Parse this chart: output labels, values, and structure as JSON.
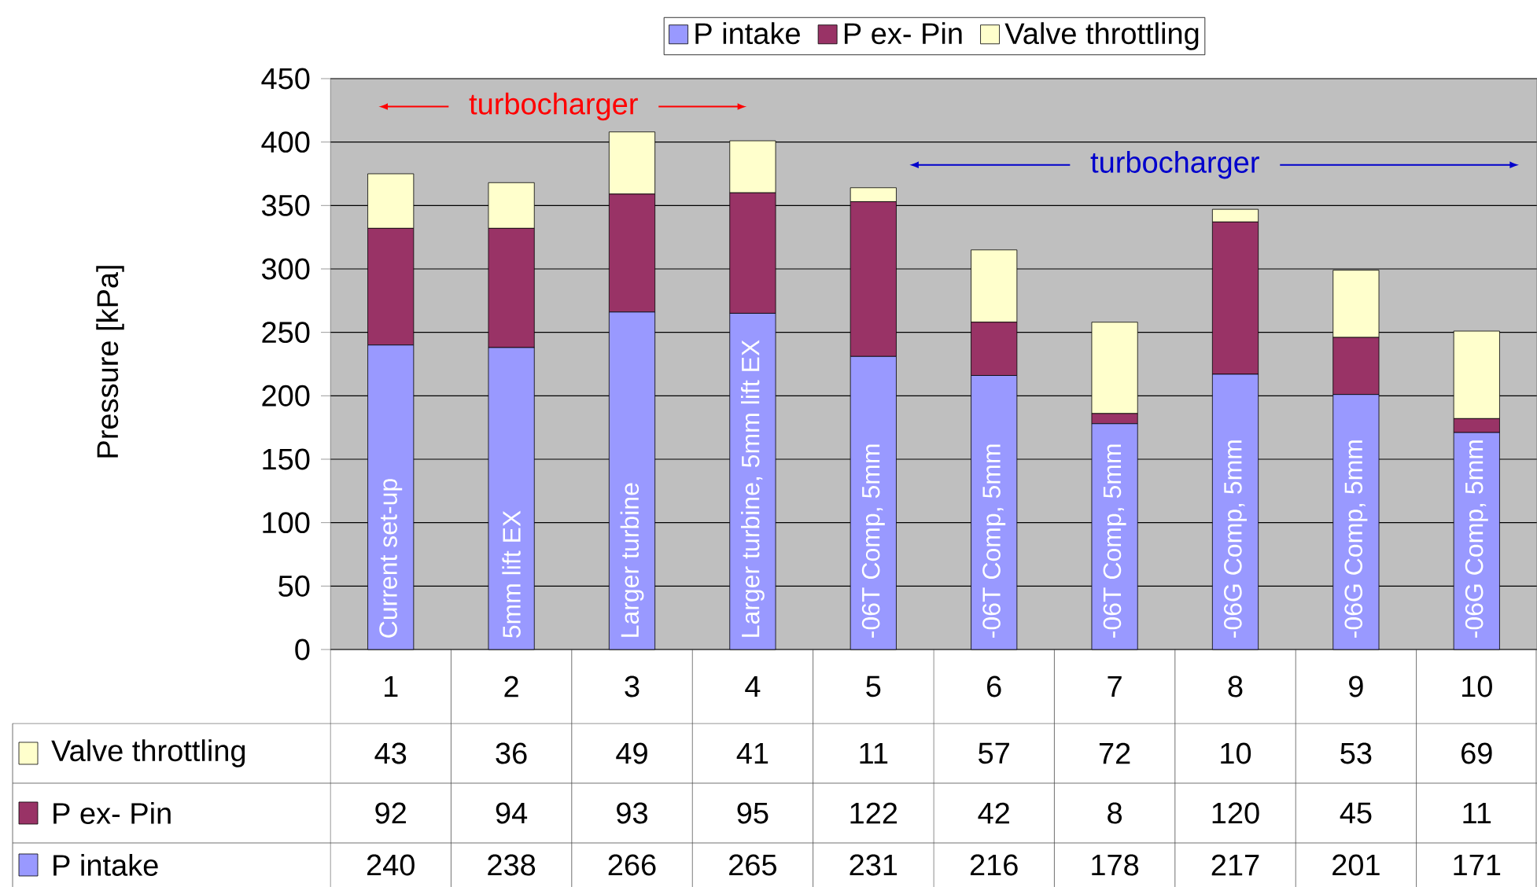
{
  "chart_data": {
    "type": "bar",
    "stacked": true,
    "ylabel": "Pressure [kPa]",
    "categories": [
      "1",
      "2",
      "3",
      "4",
      "5",
      "6",
      "7",
      "8",
      "9",
      "10"
    ],
    "series": [
      {
        "name": "P intake",
        "color": "#9999ff",
        "values": [
          240,
          238,
          266,
          265,
          231,
          216,
          178,
          217,
          201,
          171
        ]
      },
      {
        "name": "P ex- Pin",
        "color": "#993366",
        "values": [
          92,
          94,
          93,
          95,
          122,
          42,
          8,
          120,
          45,
          11
        ]
      },
      {
        "name": "Valve throttling",
        "color": "#ffffcc",
        "values": [
          43,
          36,
          49,
          41,
          11,
          57,
          72,
          10,
          53,
          69
        ]
      }
    ],
    "ylim": [
      0,
      450
    ],
    "yticks": [
      0,
      50,
      100,
      150,
      200,
      250,
      300,
      350,
      400,
      450
    ],
    "grid": "y",
    "legend": "top",
    "data_labels": true,
    "annotations": [
      "turbocharger",
      "turbocharger",
      "Current set-up",
      "5mm lift EX",
      "Larger turbine",
      "Larger turbine, 5mm lift EX",
      "-06T Comp, 5mm",
      "-06T Comp, 5mm",
      "-06T Comp, 5mm",
      "-06G Comp, 5mm",
      "-06G Comp, 5mm",
      "-06G Comp, 5mm"
    ]
  }
}
